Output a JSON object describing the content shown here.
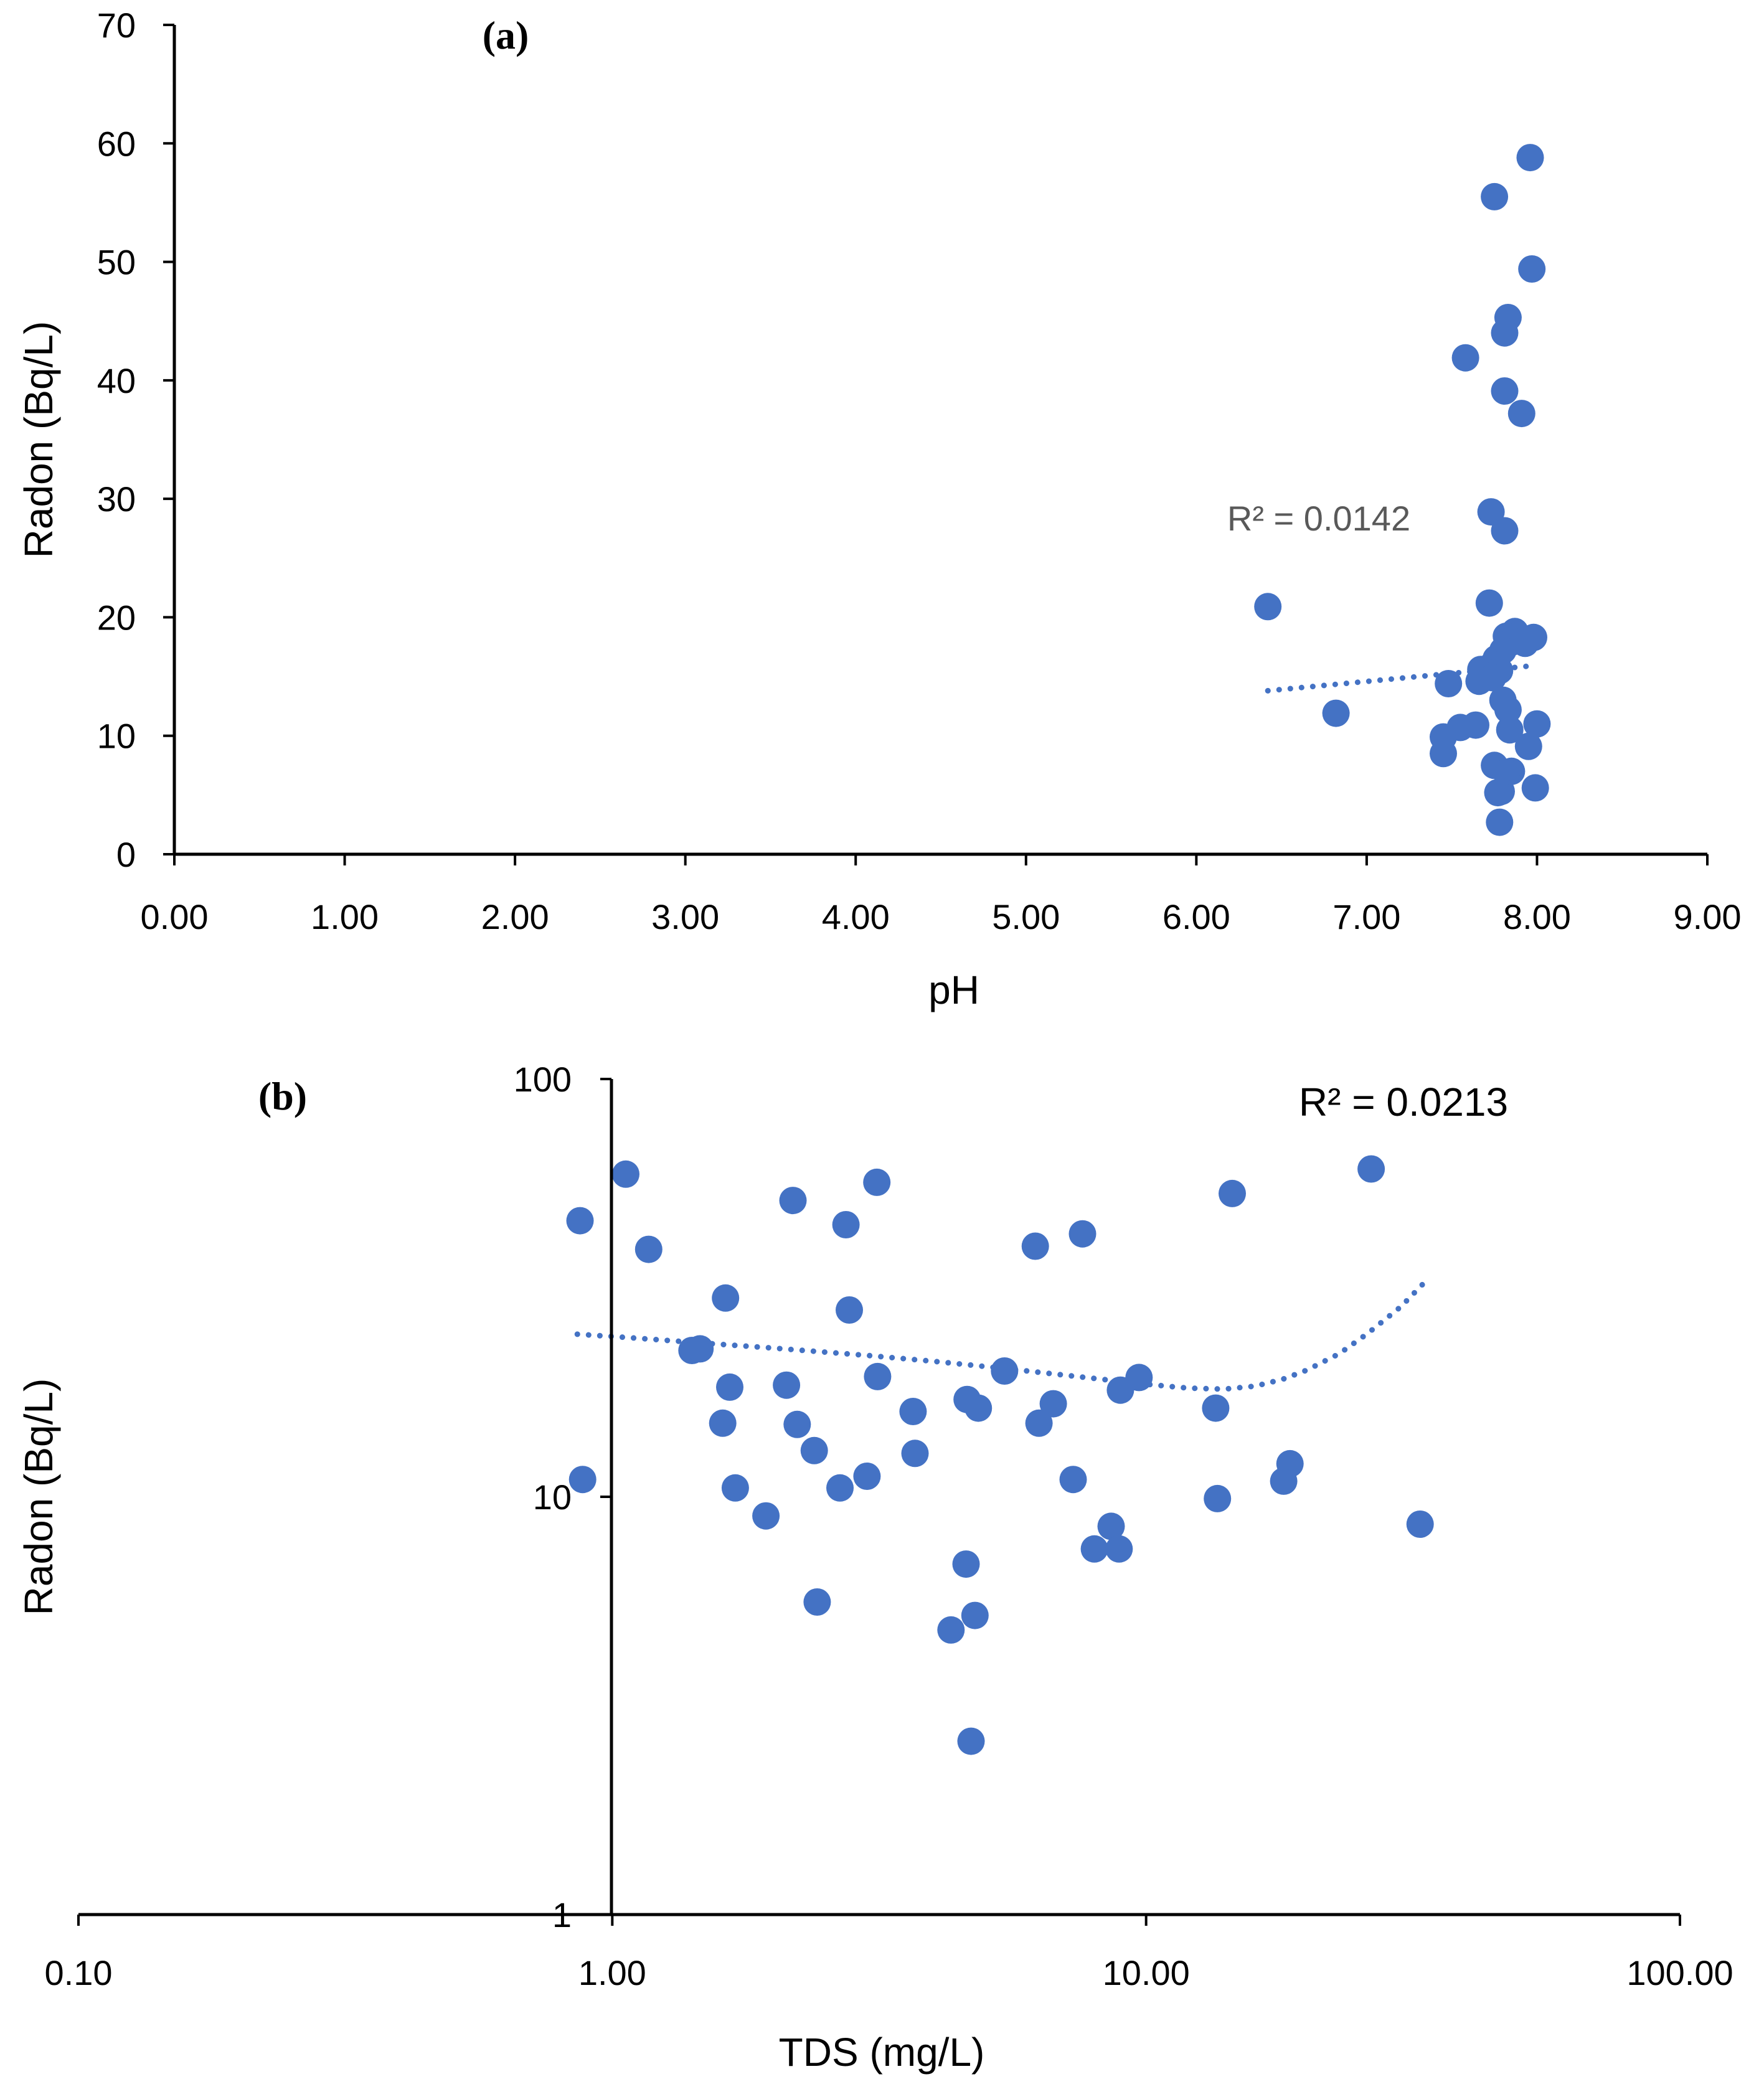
{
  "colors": {
    "marker": "#4472C4",
    "trendline": "#4472C4",
    "axis": "#000000"
  },
  "chart_data": [
    {
      "type": "scatter",
      "panel_label": "(a)",
      "xlabel": "pH",
      "ylabel": "Radon (Bq/L)",
      "xlim": [
        0,
        9
      ],
      "ylim": [
        0,
        70
      ],
      "x_ticks": [
        "0.00",
        "1.00",
        "2.00",
        "3.00",
        "4.00",
        "5.00",
        "6.00",
        "7.00",
        "8.00",
        "9.00"
      ],
      "y_ticks": [
        "0",
        "10",
        "20",
        "30",
        "40",
        "50",
        "60",
        "70"
      ],
      "trendline": {
        "type": "linear",
        "x": [
          6.42,
          7.97
        ],
        "y": [
          13.8,
          15.9
        ],
        "r2_label": "R² = 0.0142"
      },
      "points": [
        [
          7.96,
          58.8
        ],
        [
          7.75,
          55.5
        ],
        [
          7.97,
          49.4
        ],
        [
          7.83,
          45.3
        ],
        [
          7.81,
          44.0
        ],
        [
          7.58,
          41.9
        ],
        [
          7.81,
          39.1
        ],
        [
          7.91,
          37.2
        ],
        [
          7.73,
          28.9
        ],
        [
          7.81,
          27.3
        ],
        [
          6.42,
          20.9
        ],
        [
          7.72,
          21.2
        ],
        [
          7.87,
          18.8
        ],
        [
          7.82,
          18.4
        ],
        [
          7.98,
          18.3
        ],
        [
          7.85,
          17.9
        ],
        [
          7.93,
          17.8
        ],
        [
          7.76,
          16.5
        ],
        [
          7.8,
          17.2
        ],
        [
          7.74,
          16.0
        ],
        [
          7.67,
          15.6
        ],
        [
          7.7,
          15.2
        ],
        [
          7.78,
          15.5
        ],
        [
          7.66,
          14.6
        ],
        [
          7.74,
          14.9
        ],
        [
          7.48,
          14.4
        ],
        [
          7.8,
          13.0
        ],
        [
          7.83,
          12.2
        ],
        [
          6.82,
          11.9
        ],
        [
          7.55,
          10.7
        ],
        [
          7.64,
          10.9
        ],
        [
          7.84,
          10.5
        ],
        [
          8.0,
          11.0
        ],
        [
          7.45,
          9.9
        ],
        [
          7.95,
          9.1
        ],
        [
          7.45,
          8.5
        ],
        [
          7.75,
          7.5
        ],
        [
          7.85,
          7.0
        ],
        [
          7.82,
          6.9
        ],
        [
          7.79,
          5.3
        ],
        [
          7.77,
          5.2
        ],
        [
          7.99,
          5.6
        ],
        [
          7.78,
          2.7
        ]
      ]
    },
    {
      "type": "scatter",
      "panel_label": "(b)",
      "xlabel": "TDS (mg/L)",
      "ylabel": "Radon (Bq/L)",
      "x_scale": "log",
      "y_scale": "log",
      "xlim": [
        0.1,
        100
      ],
      "ylim": [
        1,
        100
      ],
      "x_ticks": [
        "0.10",
        "1.00",
        "10.00",
        "100.00"
      ],
      "y_ticks": [
        "1",
        "10",
        "100"
      ],
      "trendline": {
        "type": "polynomial",
        "x": [
          0.86,
          1.0,
          1.2,
          1.5,
          2.0,
          2.5,
          3.0,
          4.0,
          5.0,
          6.0,
          8.0,
          10.0,
          12.0,
          14.0,
          16.0,
          18.0,
          20.0,
          23.0,
          26.0,
          30.0,
          33.0
        ],
        "y": [
          24.5,
          24.2,
          23.8,
          23.3,
          22.7,
          22.2,
          21.8,
          21.1,
          20.5,
          20.0,
          19.2,
          18.6,
          18.2,
          18.1,
          18.4,
          19.1,
          20.1,
          22.0,
          24.6,
          28.5,
          32.3
        ],
        "r2_label": "R² = 0.0213"
      },
      "points": [
        [
          0.87,
          45.8
        ],
        [
          1.06,
          59.2
        ],
        [
          1.17,
          39.1
        ],
        [
          0.88,
          11.0
        ],
        [
          1.41,
          22.4
        ],
        [
          1.46,
          22.6
        ],
        [
          1.61,
          15.0
        ],
        [
          1.63,
          29.9
        ],
        [
          1.66,
          18.3
        ],
        [
          1.7,
          10.5
        ],
        [
          1.94,
          9.0
        ],
        [
          2.12,
          18.5
        ],
        [
          2.18,
          51.2
        ],
        [
          2.22,
          14.9
        ],
        [
          2.39,
          12.9
        ],
        [
          2.42,
          5.6
        ],
        [
          2.67,
          10.5
        ],
        [
          2.74,
          44.8
        ],
        [
          2.78,
          28.0
        ],
        [
          3.0,
          11.2
        ],
        [
          3.13,
          56.6
        ],
        [
          3.14,
          19.4
        ],
        [
          3.66,
          16.0
        ],
        [
          3.69,
          12.7
        ],
        [
          4.31,
          4.8
        ],
        [
          4.6,
          6.9
        ],
        [
          4.62,
          17.1
        ],
        [
          4.7,
          2.6
        ],
        [
          4.78,
          5.2
        ],
        [
          4.85,
          16.3
        ],
        [
          5.43,
          20.0
        ],
        [
          6.2,
          39.8
        ],
        [
          6.3,
          15.0
        ],
        [
          6.7,
          16.7
        ],
        [
          7.3,
          11.0
        ],
        [
          7.6,
          42.6
        ],
        [
          8.0,
          7.5
        ],
        [
          8.6,
          8.5
        ],
        [
          8.9,
          7.5
        ],
        [
          8.95,
          18.0
        ],
        [
          9.7,
          19.3
        ],
        [
          13.5,
          16.3
        ],
        [
          13.6,
          9.9
        ],
        [
          14.5,
          53.2
        ],
        [
          18.1,
          10.9
        ],
        [
          18.6,
          12.0
        ],
        [
          26.4,
          60.9
        ],
        [
          32.6,
          8.6
        ]
      ]
    }
  ]
}
